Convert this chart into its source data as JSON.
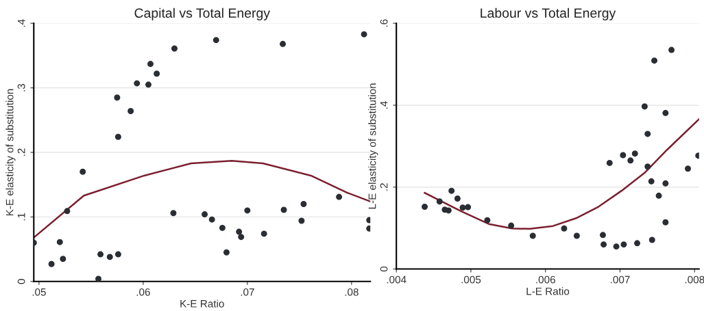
{
  "chart_data": [
    {
      "type": "scatter",
      "title": "Capital vs Total Energy",
      "xlabel": "K-E Ratio",
      "ylabel": "K-E elasticity of substitution",
      "grid": "y",
      "marker": "circle",
      "xlim": [
        0.0495,
        0.0818
      ],
      "ylim": [
        0,
        0.4
      ],
      "xticks": [
        {
          "value": 0.05,
          "label": ".05"
        },
        {
          "value": 0.06,
          "label": ".06"
        },
        {
          "value": 0.07,
          "label": ".07"
        },
        {
          "value": 0.08,
          "label": ".08"
        }
      ],
      "yticks": [
        0,
        {
          "value": 0.1,
          "label": ".1"
        },
        {
          "value": 0.2,
          "label": ".2"
        },
        {
          "value": 0.3,
          "label": ".3"
        },
        {
          "value": 0.4,
          "label": ".4"
        }
      ],
      "series": [
        {
          "color": "#2a2e33",
          "x": [
            0.0495,
            0.0512,
            0.052,
            0.0523,
            0.0527,
            0.0542,
            0.0557,
            0.0559,
            0.0568,
            0.0575,
            0.0576,
            0.0576,
            0.0588,
            0.0594,
            0.0605,
            0.0607,
            0.0613,
            0.0629,
            0.063,
            0.0659,
            0.0666,
            0.067,
            0.0676,
            0.068,
            0.0692,
            0.0694,
            0.07,
            0.0716,
            0.0734,
            0.0735,
            0.0752,
            0.0754,
            0.0788,
            0.0812,
            0.0817,
            0.0817
          ],
          "values": [
            0.06,
            0.027,
            0.061,
            0.035,
            0.109,
            0.17,
            0.004,
            0.042,
            0.038,
            0.285,
            0.224,
            0.042,
            0.264,
            0.307,
            0.305,
            0.337,
            0.322,
            0.106,
            0.361,
            0.104,
            0.096,
            0.374,
            0.083,
            0.045,
            0.077,
            0.069,
            0.11,
            0.074,
            0.368,
            0.111,
            0.094,
            0.12,
            0.131,
            0.383,
            0.095,
            0.082
          ]
        },
        {
          "type": "line",
          "color": "#7a1f2e",
          "marker": "none",
          "x": [
            0.0495,
            0.0543,
            0.0601,
            0.0646,
            0.0685,
            0.0715,
            0.0761,
            0.0795,
            0.0818
          ],
          "values": [
            0.068,
            0.133,
            0.164,
            0.183,
            0.187,
            0.183,
            0.164,
            0.138,
            0.124
          ]
        }
      ]
    },
    {
      "type": "scatter",
      "title": "Labour vs Total Energy",
      "xlabel": "L-E Ratio",
      "ylabel": "L-E elasticity of substitution",
      "grid": "y",
      "marker": "circle",
      "xlim": [
        0.004,
        0.00806
      ],
      "ylim": [
        0,
        0.6
      ],
      "xticks": [
        {
          "value": 0.004,
          "label": ".004"
        },
        {
          "value": 0.005,
          "label": ".005"
        },
        {
          "value": 0.006,
          "label": ".006"
        },
        {
          "value": 0.007,
          "label": ".007"
        },
        {
          "value": 0.008,
          "label": ".008"
        }
      ],
      "yticks": [
        0,
        {
          "value": 0.2,
          "label": ".2"
        },
        {
          "value": 0.4,
          "label": ".4"
        },
        {
          "value": 0.6,
          "label": ".6"
        }
      ],
      "series": [
        {
          "color": "#2a2e33",
          "x": [
            0.00438,
            0.00458,
            0.00465,
            0.0047,
            0.00474,
            0.00482,
            0.00489,
            0.00496,
            0.00522,
            0.00554,
            0.00583,
            0.00625,
            0.00642,
            0.00677,
            0.00678,
            0.00686,
            0.00695,
            0.00704,
            0.00705,
            0.00714,
            0.0072,
            0.00723,
            0.00733,
            0.00737,
            0.00737,
            0.00742,
            0.00743,
            0.00746,
            0.00752,
            0.00761,
            0.00761,
            0.00761,
            0.00769,
            0.00791,
            0.00805
          ],
          "values": [
            0.152,
            0.165,
            0.145,
            0.143,
            0.191,
            0.172,
            0.15,
            0.151,
            0.119,
            0.106,
            0.081,
            0.099,
            0.081,
            0.083,
            0.06,
            0.259,
            0.055,
            0.278,
            0.06,
            0.265,
            0.282,
            0.063,
            0.397,
            0.33,
            0.25,
            0.214,
            0.071,
            0.509,
            0.179,
            0.209,
            0.114,
            0.381,
            0.535,
            0.245,
            0.277
          ]
        },
        {
          "type": "line",
          "color": "#7a1f2e",
          "marker": "none",
          "x": [
            0.00438,
            0.00487,
            0.00524,
            0.00555,
            0.00579,
            0.0061,
            0.00641,
            0.00671,
            0.00702,
            0.00733,
            0.00763,
            0.00806
          ],
          "values": [
            0.186,
            0.141,
            0.11,
            0.099,
            0.098,
            0.105,
            0.124,
            0.152,
            0.191,
            0.235,
            0.291,
            0.366
          ]
        }
      ]
    }
  ]
}
